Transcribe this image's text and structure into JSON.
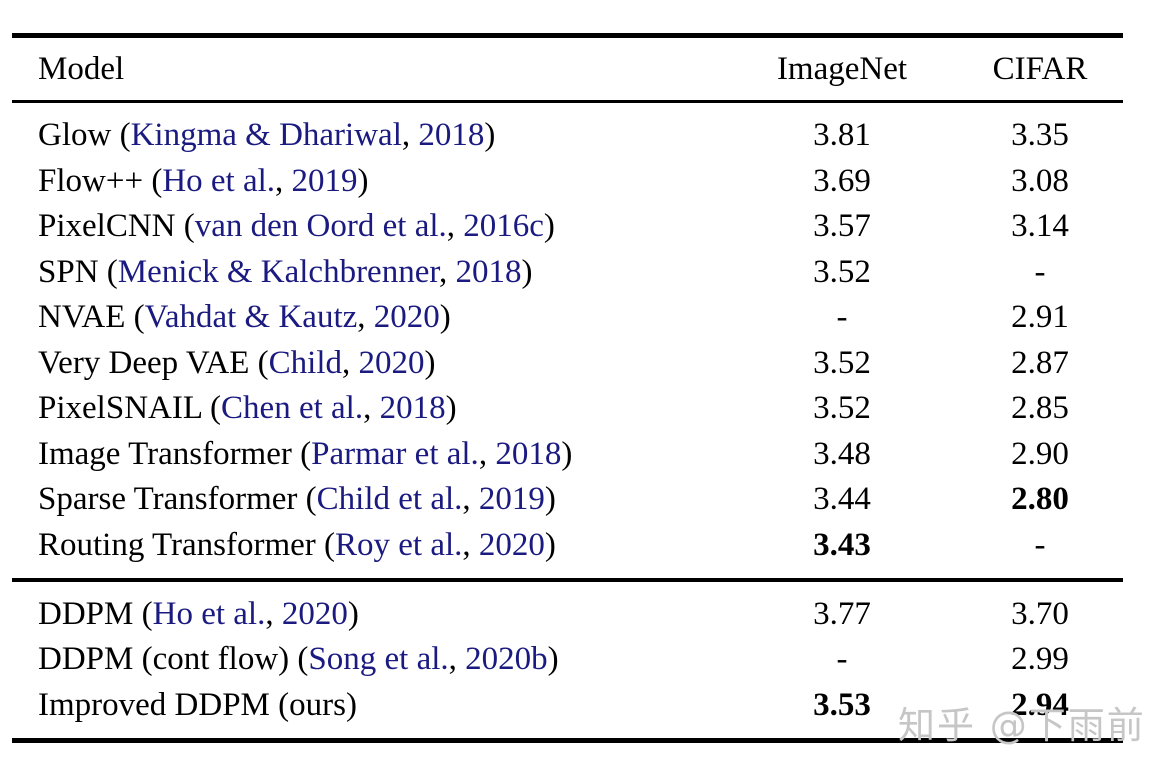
{
  "table": {
    "link_color": "#1a1a80",
    "text_color": "#000000",
    "rule_color": "#000000",
    "headers": {
      "model": "Model",
      "imagenet": "ImageNet",
      "cifar": "CIFAR"
    },
    "punct": {
      "open": "(",
      "separator": ", ",
      "close": ")"
    },
    "missing_value": "-",
    "sections": [
      {
        "rows": [
          {
            "name": "Glow",
            "cite_authors": "Kingma & Dhariwal",
            "cite_year": "2018",
            "imagenet": "3.81",
            "cifar": "3.35",
            "imagenet_bold": false,
            "cifar_bold": false
          },
          {
            "name": "Flow++",
            "cite_authors": "Ho et al.",
            "cite_year": "2019",
            "imagenet": "3.69",
            "cifar": "3.08",
            "imagenet_bold": false,
            "cifar_bold": false
          },
          {
            "name": "PixelCNN",
            "cite_authors": "van den Oord et al.",
            "cite_year": "2016c",
            "imagenet": "3.57",
            "cifar": "3.14",
            "imagenet_bold": false,
            "cifar_bold": false
          },
          {
            "name": "SPN",
            "cite_authors": "Menick & Kalchbrenner",
            "cite_year": "2018",
            "imagenet": "3.52",
            "cifar": "-",
            "imagenet_bold": false,
            "cifar_bold": false
          },
          {
            "name": "NVAE",
            "cite_authors": "Vahdat & Kautz",
            "cite_year": "2020",
            "imagenet": "-",
            "cifar": "2.91",
            "imagenet_bold": false,
            "cifar_bold": false
          },
          {
            "name": "Very Deep VAE",
            "cite_authors": "Child",
            "cite_year": "2020",
            "imagenet": "3.52",
            "cifar": "2.87",
            "imagenet_bold": false,
            "cifar_bold": false
          },
          {
            "name": "PixelSNAIL",
            "cite_authors": "Chen et al.",
            "cite_year": "2018",
            "imagenet": "3.52",
            "cifar": "2.85",
            "imagenet_bold": false,
            "cifar_bold": false
          },
          {
            "name": "Image Transformer",
            "cite_authors": "Parmar et al.",
            "cite_year": "2018",
            "imagenet": "3.48",
            "cifar": "2.90",
            "imagenet_bold": false,
            "cifar_bold": false
          },
          {
            "name": "Sparse Transformer",
            "cite_authors": "Child et al.",
            "cite_year": "2019",
            "imagenet": "3.44",
            "cifar": "2.80",
            "imagenet_bold": false,
            "cifar_bold": true
          },
          {
            "name": "Routing Transformer",
            "cite_authors": "Roy et al.",
            "cite_year": "2020",
            "imagenet": "3.43",
            "cifar": "-",
            "imagenet_bold": true,
            "cifar_bold": false
          }
        ]
      },
      {
        "rows": [
          {
            "name": "DDPM",
            "cite_authors": "Ho et al.",
            "cite_year": "2020",
            "imagenet": "3.77",
            "cifar": "3.70",
            "imagenet_bold": false,
            "cifar_bold": false
          },
          {
            "name": "DDPM (cont flow)",
            "cite_authors": "Song et al.",
            "cite_year": "2020b",
            "imagenet": "-",
            "cifar": "2.99",
            "imagenet_bold": false,
            "cifar_bold": false
          },
          {
            "name": "Improved DDPM (ours)",
            "cite_authors": null,
            "cite_year": null,
            "imagenet": "3.53",
            "cifar": "2.94",
            "imagenet_bold": true,
            "cifar_bold": true
          }
        ]
      }
    ]
  },
  "watermark": {
    "text": "知乎 @下雨前",
    "color": "#c6c6c6"
  }
}
